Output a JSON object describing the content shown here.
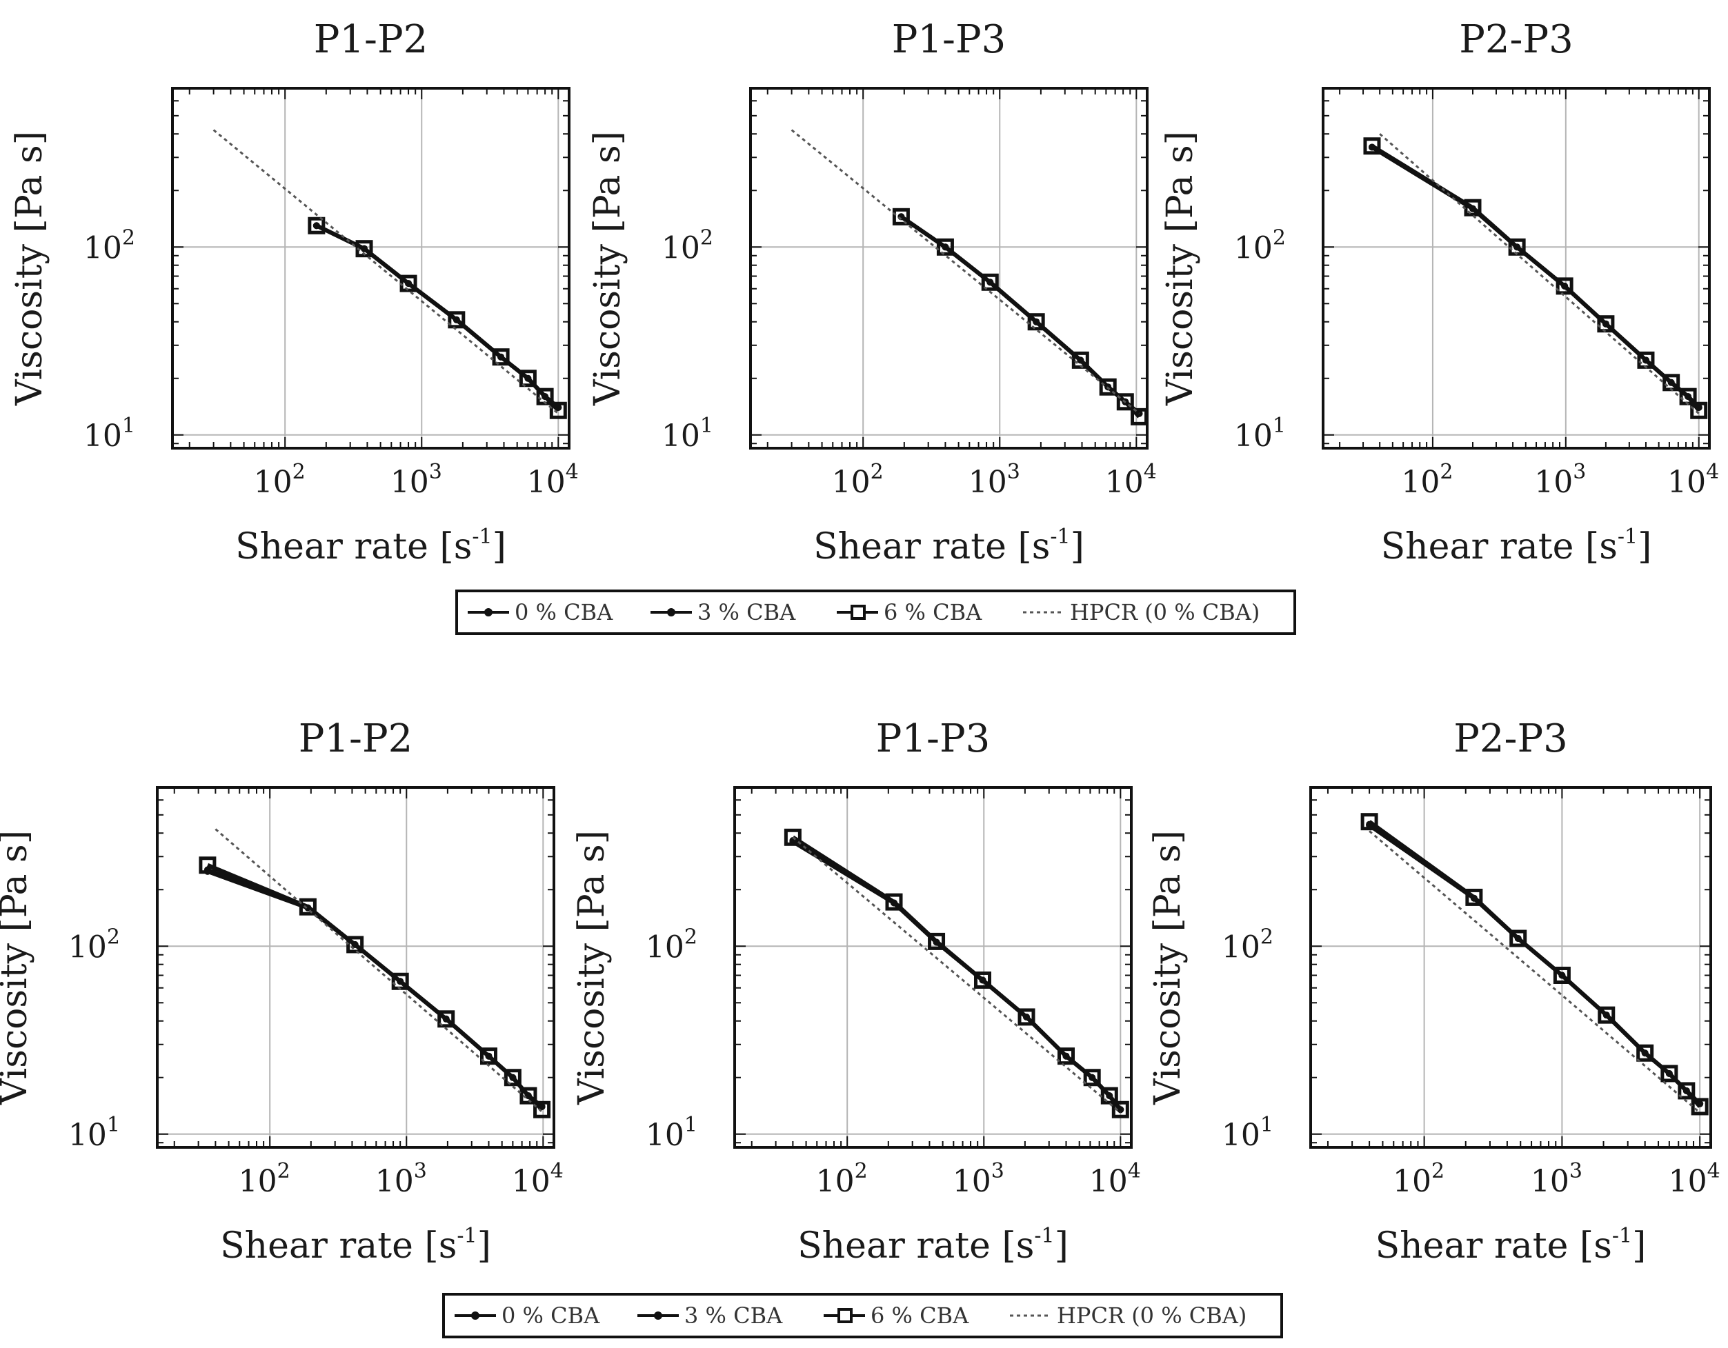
{
  "figure": {
    "colors": {
      "series": "#111111",
      "grid": "#b5b5b5",
      "frame": "#111111",
      "reference": "#555555"
    },
    "legend": {
      "entries": [
        "0 % CBA",
        "3 % CBA",
        "6 % CBA",
        "HPCR (0 % CBA)"
      ]
    }
  },
  "chart_data": [
    {
      "type": "line",
      "title": "P1-P2",
      "xlabel": "Shear rate",
      "xunit": "s",
      "xunit_exp": "-1",
      "ylabel": "Viscosity [Pa s]",
      "xscale": "log",
      "yscale": "log",
      "xlim": [
        15,
        12000
      ],
      "ylim": [
        8.5,
        700
      ],
      "xticks": [
        {
          "base": "10",
          "exp": "2",
          "v": 100
        },
        {
          "base": "10",
          "exp": "3",
          "v": 1000
        },
        {
          "base": "10",
          "exp": "4",
          "v": 10000
        }
      ],
      "yticks": [
        {
          "base": "10",
          "exp": "1",
          "v": 10
        },
        {
          "base": "10",
          "exp": "2",
          "v": 100
        }
      ],
      "series": [
        {
          "name": "0 % CBA",
          "marker": "dot",
          "x": [
            170,
            380,
            800,
            1800,
            3800,
            6000,
            8000,
            10000
          ],
          "y": [
            130,
            98,
            64,
            41,
            26,
            20,
            16,
            14
          ]
        },
        {
          "name": "3 % CBA",
          "marker": "dot",
          "x": [
            170,
            380,
            800,
            1800,
            3800,
            6000,
            8000,
            10000
          ],
          "y": [
            130,
            98,
            64,
            41,
            26,
            20,
            16,
            14
          ]
        },
        {
          "name": "6 % CBA",
          "marker": "square",
          "x": [
            170,
            380,
            800,
            1800,
            3800,
            6000,
            8000,
            10000
          ],
          "y": [
            130,
            98,
            64,
            41,
            26,
            20,
            16,
            13.5
          ]
        },
        {
          "name": "HPCR (0 % CBA)",
          "marker": "none",
          "x": [
            30,
            10000
          ],
          "y": [
            420,
            13
          ]
        }
      ]
    },
    {
      "type": "line",
      "title": "P1-P3",
      "xlabel": "Shear rate",
      "xunit": "s",
      "xunit_exp": "-1",
      "ylabel": "Viscosity [Pa s]",
      "xscale": "log",
      "yscale": "log",
      "xlim": [
        15,
        12000
      ],
      "ylim": [
        8.5,
        700
      ],
      "xticks": [
        {
          "base": "10",
          "exp": "2",
          "v": 100
        },
        {
          "base": "10",
          "exp": "3",
          "v": 1000
        },
        {
          "base": "10",
          "exp": "4",
          "v": 10000
        }
      ],
      "yticks": [
        {
          "base": "10",
          "exp": "1",
          "v": 10
        },
        {
          "base": "10",
          "exp": "2",
          "v": 100
        }
      ],
      "series": [
        {
          "name": "0 % CBA",
          "marker": "dot",
          "x": [
            190,
            400,
            850,
            1850,
            3900,
            6200,
            8300,
            10500
          ],
          "y": [
            145,
            100,
            65,
            40,
            25,
            18,
            15,
            13
          ]
        },
        {
          "name": "3 % CBA",
          "marker": "dot",
          "x": [
            190,
            400,
            850,
            1850,
            3900,
            6200,
            8300,
            10500
          ],
          "y": [
            145,
            100,
            65,
            40,
            25,
            18,
            15,
            13
          ]
        },
        {
          "name": "6 % CBA",
          "marker": "square",
          "x": [
            190,
            400,
            850,
            1850,
            3900,
            6200,
            8300,
            10500
          ],
          "y": [
            145,
            100,
            65,
            40,
            25,
            18,
            15,
            12.5
          ]
        },
        {
          "name": "HPCR (0 % CBA)",
          "marker": "none",
          "x": [
            30,
            10500
          ],
          "y": [
            420,
            13
          ]
        }
      ]
    },
    {
      "type": "line",
      "title": "P2-P3",
      "xlabel": "Shear rate",
      "xunit": "s",
      "xunit_exp": "-1",
      "ylabel": "Viscosity [Pa s]",
      "xscale": "log",
      "yscale": "log",
      "xlim": [
        15,
        12000
      ],
      "ylim": [
        8.5,
        700
      ],
      "xticks": [
        {
          "base": "10",
          "exp": "2",
          "v": 100
        },
        {
          "base": "10",
          "exp": "3",
          "v": 1000
        },
        {
          "base": "10",
          "exp": "4",
          "v": 10000
        }
      ],
      "yticks": [
        {
          "base": "10",
          "exp": "1",
          "v": 10
        },
        {
          "base": "10",
          "exp": "2",
          "v": 100
        }
      ],
      "series": [
        {
          "name": "0 % CBA",
          "marker": "dot",
          "x": [
            35,
            200,
            430,
            980,
            2000,
            4000,
            6200,
            8300,
            10000
          ],
          "y": [
            340,
            160,
            100,
            62,
            39,
            25,
            19,
            16,
            14
          ]
        },
        {
          "name": "3 % CBA",
          "marker": "dot",
          "x": [
            35,
            200,
            430,
            980,
            2000,
            4000,
            6200,
            8300,
            10000
          ],
          "y": [
            340,
            160,
            100,
            62,
            39,
            25,
            19,
            16,
            14
          ]
        },
        {
          "name": "6 % CBA",
          "marker": "square",
          "x": [
            35,
            200,
            430,
            980,
            2000,
            4000,
            6200,
            8300,
            10000
          ],
          "y": [
            345,
            162,
            100,
            62,
            39,
            25,
            19,
            16,
            13.5
          ]
        },
        {
          "name": "HPCR (0 % CBA)",
          "marker": "none",
          "x": [
            40,
            10000
          ],
          "y": [
            400,
            13
          ]
        }
      ]
    },
    {
      "type": "line",
      "title": "P1-P2",
      "xlabel": "Shear rate",
      "xunit": "s",
      "xunit_exp": "-1",
      "ylabel": "Viscosity [Pa s]",
      "xscale": "log",
      "yscale": "log",
      "xlim": [
        15,
        12000
      ],
      "ylim": [
        8.5,
        700
      ],
      "xticks": [
        {
          "base": "10",
          "exp": "2",
          "v": 100
        },
        {
          "base": "10",
          "exp": "3",
          "v": 1000
        },
        {
          "base": "10",
          "exp": "4",
          "v": 10000
        }
      ],
      "yticks": [
        {
          "base": "10",
          "exp": "1",
          "v": 10
        },
        {
          "base": "10",
          "exp": "2",
          "v": 100
        }
      ],
      "series": [
        {
          "name": "0 % CBA",
          "marker": "dot",
          "x": [
            35,
            190,
            420,
            900,
            1950,
            4000,
            6000,
            7800,
            9800
          ],
          "y": [
            250,
            160,
            102,
            65,
            41,
            26,
            20,
            16,
            14
          ]
        },
        {
          "name": "3 % CBA",
          "marker": "dot",
          "x": [
            35,
            190,
            420,
            900,
            1950,
            4000,
            6000,
            7800,
            9800
          ],
          "y": [
            255,
            160,
            102,
            65,
            41,
            26,
            20,
            16,
            14
          ]
        },
        {
          "name": "6 % CBA",
          "marker": "square",
          "x": [
            35,
            190,
            420,
            900,
            1950,
            4000,
            6000,
            7800,
            9800
          ],
          "y": [
            270,
            162,
            102,
            65,
            41,
            26,
            20,
            16,
            13.5
          ]
        },
        {
          "name": "HPCR (0 % CBA)",
          "marker": "none",
          "x": [
            40,
            10000
          ],
          "y": [
            420,
            13
          ]
        }
      ]
    },
    {
      "type": "line",
      "title": "P1-P3",
      "xlabel": "Shear rate",
      "xunit": "s",
      "xunit_exp": "-1",
      "ylabel": "Viscosity [Pa s]",
      "xscale": "log",
      "yscale": "log",
      "xlim": [
        15,
        12000
      ],
      "ylim": [
        8.5,
        700
      ],
      "xticks": [
        {
          "base": "10",
          "exp": "2",
          "v": 100
        },
        {
          "base": "10",
          "exp": "3",
          "v": 1000
        },
        {
          "base": "10",
          "exp": "4",
          "v": 10000
        }
      ],
      "yticks": [
        {
          "base": "10",
          "exp": "1",
          "v": 10
        },
        {
          "base": "10",
          "exp": "2",
          "v": 100
        }
      ],
      "series": [
        {
          "name": "0 % CBA",
          "marker": "dot",
          "x": [
            40,
            220,
            450,
            980,
            2050,
            4000,
            6200,
            8300,
            10000
          ],
          "y": [
            360,
            170,
            105,
            66,
            42,
            26,
            20,
            16,
            13.5
          ]
        },
        {
          "name": "3 % CBA",
          "marker": "dot",
          "x": [
            40,
            220,
            450,
            980,
            2050,
            4000,
            6200,
            8300,
            10000
          ],
          "y": [
            365,
            170,
            105,
            66,
            42,
            26,
            20,
            16,
            13.5
          ]
        },
        {
          "name": "6 % CBA",
          "marker": "square",
          "x": [
            40,
            220,
            450,
            980,
            2050,
            4000,
            6200,
            8300,
            10000
          ],
          "y": [
            380,
            172,
            106,
            66,
            42,
            26,
            20,
            16,
            13.5
          ]
        },
        {
          "name": "HPCR (0 % CBA)",
          "marker": "none",
          "x": [
            40,
            10000
          ],
          "y": [
            380,
            13
          ]
        }
      ]
    },
    {
      "type": "line",
      "title": "P2-P3",
      "xlabel": "Shear rate",
      "xunit": "s",
      "xunit_exp": "-1",
      "ylabel": "Viscosity [Pa s]",
      "xscale": "log",
      "yscale": "log",
      "xlim": [
        15,
        12000
      ],
      "ylim": [
        8.5,
        700
      ],
      "xticks": [
        {
          "base": "10",
          "exp": "2",
          "v": 100
        },
        {
          "base": "10",
          "exp": "3",
          "v": 1000
        },
        {
          "base": "10",
          "exp": "4",
          "v": 10000
        }
      ],
      "yticks": [
        {
          "base": "10",
          "exp": "1",
          "v": 10
        },
        {
          "base": "10",
          "exp": "2",
          "v": 100
        }
      ],
      "series": [
        {
          "name": "0 % CBA",
          "marker": "dot",
          "x": [
            40,
            230,
            480,
            1000,
            2100,
            4000,
            6000,
            8000,
            10000
          ],
          "y": [
            440,
            180,
            110,
            70,
            43,
            27,
            21,
            17,
            14.5
          ]
        },
        {
          "name": "3 % CBA",
          "marker": "dot",
          "x": [
            40,
            230,
            480,
            1000,
            2100,
            4000,
            6000,
            8000,
            10000
          ],
          "y": [
            445,
            180,
            110,
            70,
            43,
            27,
            21,
            17,
            14.5
          ]
        },
        {
          "name": "6 % CBA",
          "marker": "square",
          "x": [
            40,
            230,
            480,
            1000,
            2100,
            4000,
            6000,
            8000,
            10000
          ],
          "y": [
            460,
            182,
            110,
            70,
            43,
            27,
            21,
            17,
            14
          ]
        },
        {
          "name": "HPCR (0 % CBA)",
          "marker": "none",
          "x": [
            40,
            10000
          ],
          "y": [
            410,
            13
          ]
        }
      ]
    }
  ]
}
